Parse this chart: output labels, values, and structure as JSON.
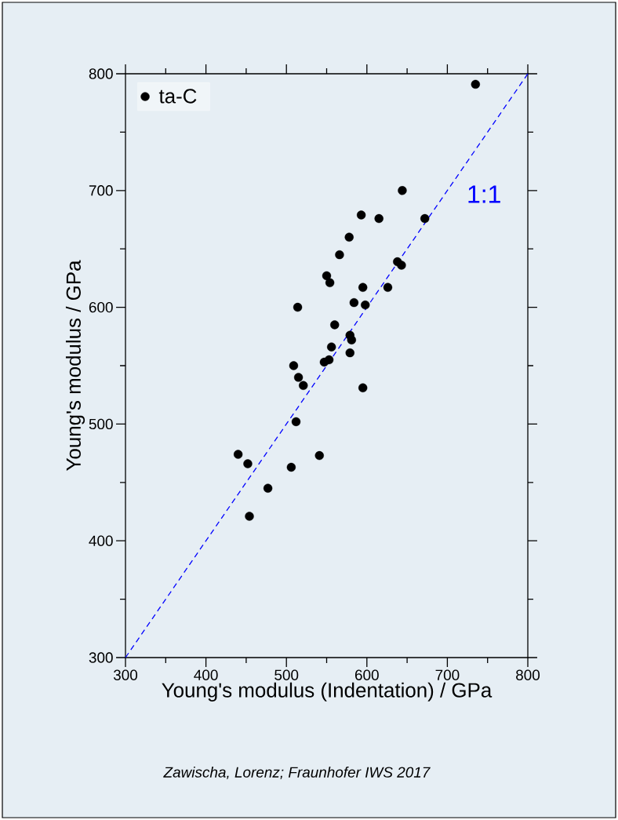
{
  "chart_data": {
    "type": "scatter",
    "xlabel": "Young's modulus (Indentation) / GPa",
    "ylabel": "Young's modulus / GPa",
    "xlim": [
      300,
      800
    ],
    "ylim": [
      300,
      800
    ],
    "xticks": [
      300,
      400,
      500,
      600,
      700,
      800
    ],
    "yticks": [
      300,
      400,
      500,
      600,
      700,
      800
    ],
    "grid": false,
    "legend": "top left",
    "series": [
      {
        "name": "ta-C",
        "color": "#000000",
        "marker": "circle",
        "x": [
          735,
          644,
          593,
          615,
          672,
          578,
          566,
          550,
          554,
          638,
          643,
          514,
          595,
          626,
          584,
          598,
          560,
          579,
          581,
          579,
          556,
          553,
          547,
          509,
          515,
          521,
          595,
          512,
          440,
          452,
          541,
          506,
          477,
          454
        ],
        "values": [
          791,
          700,
          679,
          676,
          676,
          660,
          645,
          627,
          621,
          639,
          636,
          600,
          617,
          617,
          604,
          602,
          585,
          576,
          572,
          561,
          566,
          555,
          553,
          550,
          540,
          533,
          531,
          502,
          474,
          466,
          473,
          463,
          445,
          421
        ]
      },
      {
        "name": "1:1",
        "type": "line",
        "color": "#0000ff",
        "line_style": "dashed",
        "marker": "none",
        "x": [
          300,
          800
        ],
        "values": [
          300,
          800
        ]
      }
    ],
    "annotations": [
      "*Zawischa, Lorenz; Fraunhofer IWS 2017*"
    ]
  }
}
